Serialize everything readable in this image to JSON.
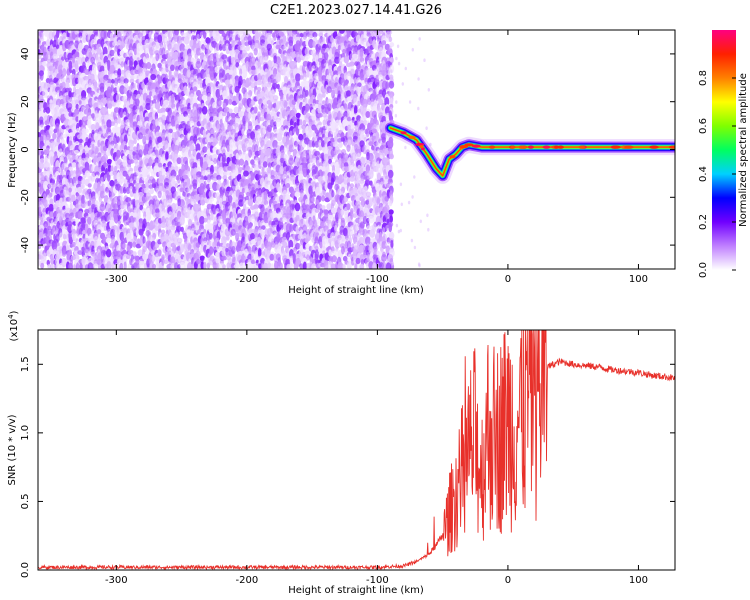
{
  "title": "C2E1.2023.027.14.41.G26",
  "chart_data": [
    {
      "type": "heatmap",
      "xlabel": "Height of straight line (km)",
      "ylabel": "Frequency (Hz)",
      "xlim": [
        -360,
        128
      ],
      "ylim": [
        -50,
        50
      ],
      "x_ticks": [
        -300,
        -200,
        -100,
        0,
        100
      ],
      "x_tick_labels": [
        "-300",
        "-200",
        "-100",
        "0",
        "100"
      ],
      "y_ticks": [
        -40,
        -20,
        0,
        20,
        40
      ],
      "y_tick_labels": [
        "-40",
        "-20",
        "0",
        "20",
        "40"
      ],
      "noise_region_x": [
        -360,
        -90
      ],
      "signal_trace": {
        "x": [
          -90,
          -80,
          -70,
          -62,
          -55,
          -50,
          -45,
          -40,
          -35,
          -30,
          -20,
          -10,
          0,
          20,
          40,
          60,
          80,
          100,
          128
        ],
        "frequency": [
          9,
          7,
          4,
          -2,
          -8,
          -11,
          -4,
          -2,
          1,
          2,
          1,
          1,
          1,
          1,
          1,
          1,
          1,
          1,
          1
        ]
      },
      "colorbar": {
        "label": "Normalized spectral amplitude",
        "range": [
          0.0,
          1.0
        ],
        "ticks": [
          0.0,
          0.2,
          0.4,
          0.6,
          0.8
        ],
        "tick_labels": [
          "0.0",
          "0.2",
          "0.4",
          "0.6",
          "0.8"
        ],
        "colors": [
          "#ffffff",
          "#c080ff",
          "#7000ff",
          "#0000ff",
          "#00d0ff",
          "#00ff60",
          "#80ff00",
          "#ffff00",
          "#ff8000",
          "#ff2000",
          "#ff0080"
        ]
      },
      "grid": false
    },
    {
      "type": "line",
      "xlabel": "Height of straight line (km)",
      "ylabel": "SNR (10 * v/v)",
      "scale_label": "(x10",
      "scale_exp": "4",
      "scale_close": ")",
      "xlim": [
        -360,
        128
      ],
      "ylim": [
        0,
        1.75
      ],
      "x_ticks": [
        -300,
        -200,
        -100,
        0,
        100
      ],
      "x_tick_labels": [
        "-300",
        "-200",
        "-100",
        "0",
        "100"
      ],
      "y_ticks": [
        0.0,
        0.5,
        1.0,
        1.5
      ],
      "y_tick_labels": [
        "0.0",
        "0.5",
        "1.0",
        "1.5"
      ],
      "series": [
        {
          "color": "#e8302a",
          "x": [
            -360,
            -300,
            -250,
            -200,
            -150,
            -100,
            -80,
            -70,
            -60,
            -55,
            -50,
            -45,
            -40,
            -35,
            -30,
            -25,
            -20,
            -15,
            -10,
            -5,
            0,
            5,
            10,
            15,
            20,
            25,
            30,
            40,
            50,
            60,
            70,
            80,
            90,
            100,
            110,
            120,
            128
          ],
          "y": [
            0.02,
            0.02,
            0.02,
            0.02,
            0.02,
            0.02,
            0.03,
            0.06,
            0.12,
            0.18,
            0.25,
            0.4,
            0.55,
            0.7,
            0.85,
            0.95,
            0.7,
            1.05,
            0.95,
            1.0,
            1.1,
            1.05,
            1.15,
            1.3,
            1.35,
            1.42,
            1.48,
            1.52,
            1.5,
            1.49,
            1.48,
            1.46,
            1.45,
            1.44,
            1.42,
            1.41,
            1.4
          ]
        }
      ],
      "grid": false
    }
  ]
}
